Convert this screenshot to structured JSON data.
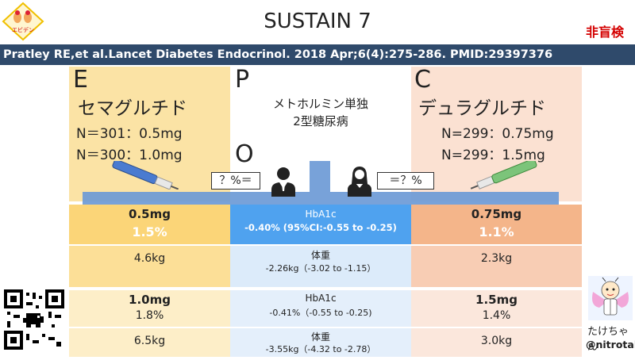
{
  "header": {
    "title": "SUSTAIN 7",
    "badge": "非盲検",
    "logo_text": "エビデン",
    "citation": "Pratley RE,et al.Lancet Diabetes Endocrinol. 2018 Apr;6(4):275-286. PMID:29397376"
  },
  "pico": {
    "e": {
      "letter": "E",
      "drug": "セマグルチド",
      "n1": "N＝301：0.5mg",
      "n2": "N＝300：1.0mg"
    },
    "p": {
      "letter": "P",
      "line1": "メトホルミン単独",
      "line2": "2型糖尿病"
    },
    "o": {
      "letter": "O",
      "left_box": "？%＝",
      "right_box": "＝？%"
    },
    "c": {
      "letter": "C",
      "drug": "デュラグルチド",
      "n1": "N=299：0.75mg",
      "n2": "N=299：1.5mg"
    }
  },
  "results": {
    "r1": {
      "e_dose": "0.5mg",
      "e_hba": "1.5%",
      "p_label": "HbA1c",
      "p_value": "-0.40% (95%CI:-0.55 to -0.25)",
      "c_dose": "0.75mg",
      "c_hba": "1.1%"
    },
    "r2": {
      "e_wt": "4.6kg",
      "p_label": "体重",
      "p_value": "-2.26kg（-3.02 to -1.15）",
      "c_wt": "2.3kg"
    },
    "r3": {
      "e_dose": "1.0mg",
      "e_hba": "1.8%",
      "p_label": "HbA1c",
      "p_value": "-0.41%（-0.55 to -0.25)",
      "c_dose": "1.5mg",
      "c_hba": "1.4%"
    },
    "r4": {
      "e_wt": "6.5kg",
      "p_label": "体重",
      "p_value": "-3.55kg（-4.32 to -2.78）",
      "c_wt": "3.0kg"
    }
  },
  "footer": {
    "name": "たけちゃん",
    "handle": "@nitrotake"
  },
  "colors": {
    "header_bar": "#2f4a6b",
    "badge": "#d40000",
    "arrow": "#6d9ad6",
    "e_col": "#fbe3a5",
    "c_col": "#fbe1d2",
    "hba_blue": "#4fa2ef"
  }
}
